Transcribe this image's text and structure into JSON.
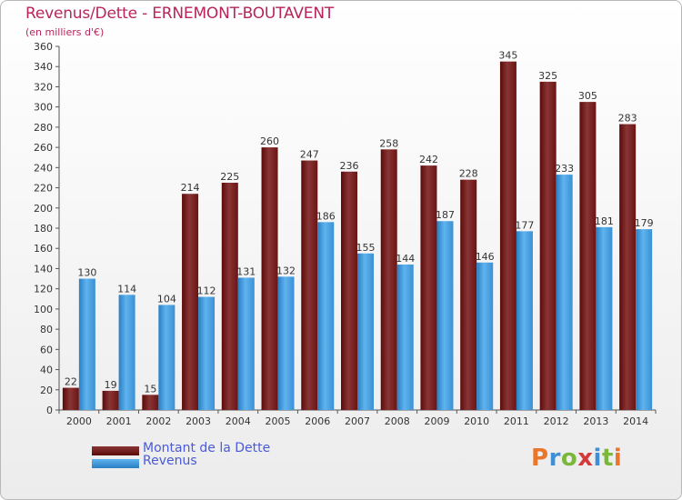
{
  "title": "Revenus/Dette - ERNEMONT-BOUTAVENT",
  "subtitle": "(en milliers d'€)",
  "colors": {
    "title": "#b8245b",
    "debt_dark": "#5a0a0a",
    "debt_light": "#8a3535",
    "revenue_dark": "#2a7fc4",
    "revenue_light": "#5fb3ee",
    "legend_text": "#4a5ad8"
  },
  "legend": [
    {
      "label": "Montant de la Dette",
      "color": "#6d1414"
    },
    {
      "label": "Revenus",
      "color": "#48a3e6"
    }
  ],
  "logo": {
    "letters": [
      "P",
      "r",
      "o",
      "x",
      "i",
      "t",
      "i"
    ],
    "colors": [
      "#e8772a",
      "#3e8fd8",
      "#7ab83c",
      "#d43a3a",
      "#3e8fd8",
      "#7ab83c",
      "#e8772a"
    ]
  },
  "chart_data": {
    "type": "bar",
    "title": "Revenus/Dette - ERNEMONT-BOUTAVENT",
    "subtitle": "(en milliers d'€)",
    "categories": [
      "2000",
      "2001",
      "2002",
      "2003",
      "2004",
      "2005",
      "2006",
      "2007",
      "2008",
      "2009",
      "2010",
      "2011",
      "2012",
      "2013",
      "2014"
    ],
    "series": [
      {
        "name": "Montant de la Dette",
        "values": [
          22,
          19,
          15,
          214,
          225,
          260,
          247,
          236,
          258,
          242,
          228,
          345,
          325,
          305,
          283
        ]
      },
      {
        "name": "Revenus",
        "values": [
          130,
          114,
          104,
          112,
          131,
          132,
          186,
          155,
          144,
          187,
          146,
          177,
          233,
          181,
          179
        ]
      }
    ],
    "ylim": [
      0,
      360
    ],
    "yticks": [
      0,
      20,
      40,
      60,
      80,
      100,
      120,
      140,
      160,
      180,
      200,
      220,
      240,
      260,
      280,
      300,
      320,
      340,
      360
    ],
    "grid": false,
    "legend_position": "bottom-left"
  }
}
